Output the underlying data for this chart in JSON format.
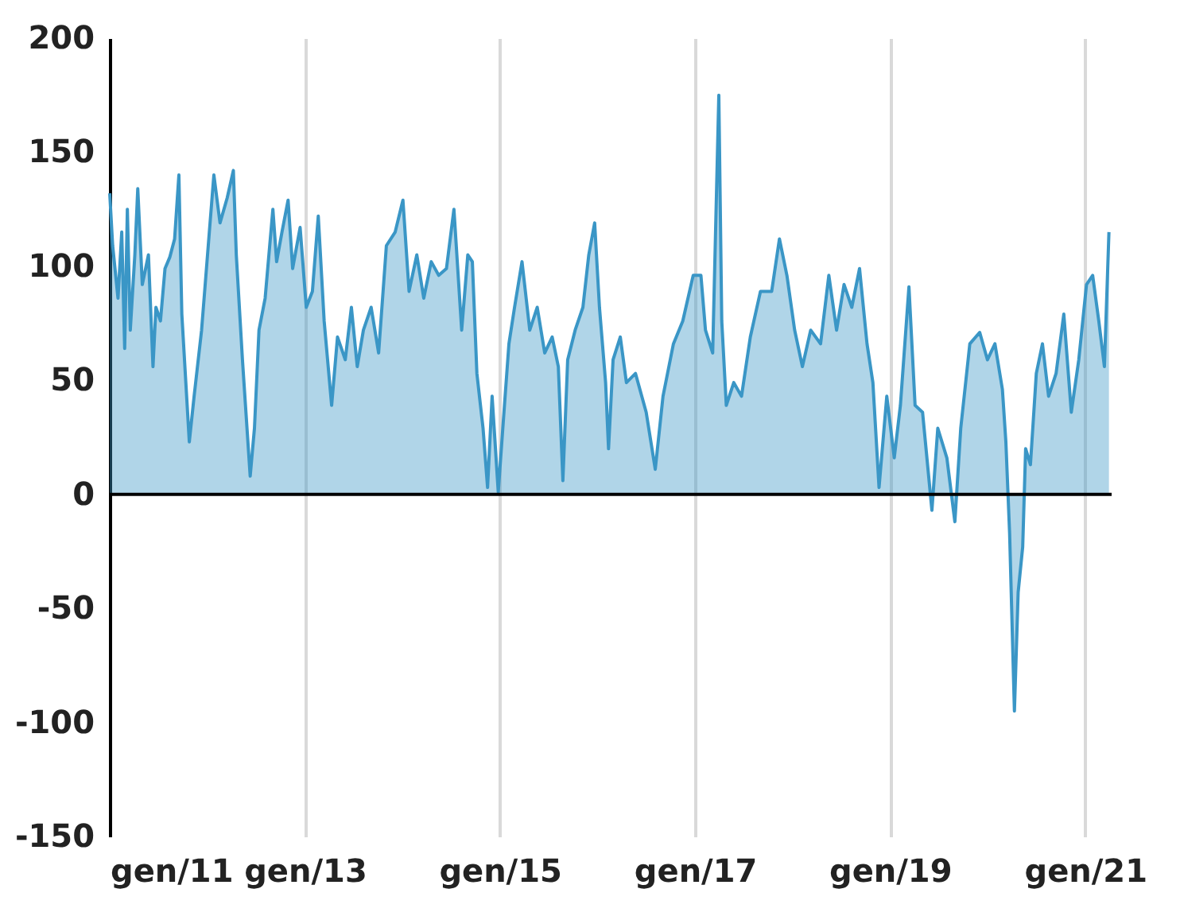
{
  "chart_data": {
    "type": "area",
    "x": [
      "2011-01-01",
      "2011-01-12",
      "2011-02-01",
      "2011-02-15",
      "2011-02-26",
      "2011-03-08",
      "2011-03-19",
      "2011-04-05",
      "2011-04-16",
      "2011-05-03",
      "2011-05-26",
      "2011-06-12",
      "2011-06-23",
      "2011-07-10",
      "2011-07-27",
      "2011-08-14",
      "2011-09-01",
      "2011-09-17",
      "2011-09-28",
      "2011-10-26",
      "2011-11-13",
      "2011-12-11",
      "2012-01-09",
      "2012-01-26",
      "2012-02-18",
      "2012-03-16",
      "2012-04-08",
      "2012-04-19",
      "2012-05-12",
      "2012-06-10",
      "2012-06-26",
      "2012-07-13",
      "2012-08-05",
      "2012-09-03",
      "2012-09-17",
      "2012-10-07",
      "2012-10-30",
      "2012-11-16",
      "2012-12-14",
      "2013-01-06",
      "2013-01-29",
      "2013-02-20",
      "2013-03-14",
      "2013-04-11",
      "2013-05-03",
      "2013-06-01",
      "2013-06-24",
      "2013-07-16",
      "2013-08-08",
      "2013-09-06",
      "2013-10-04",
      "2013-11-02",
      "2013-12-05",
      "2014-01-03",
      "2014-01-26",
      "2014-02-24",
      "2014-03-22",
      "2014-04-19",
      "2014-05-17",
      "2014-06-15",
      "2014-07-13",
      "2014-08-11",
      "2014-09-03",
      "2014-09-20",
      "2014-10-07",
      "2014-10-30",
      "2014-11-16",
      "2014-12-03",
      "2014-12-26",
      "2015-01-12",
      "2015-02-04",
      "2015-02-25",
      "2015-03-25",
      "2015-04-23",
      "2015-05-21",
      "2015-06-18",
      "2015-07-16",
      "2015-08-08",
      "2015-08-25",
      "2015-09-12",
      "2015-10-10",
      "2015-11-08",
      "2015-11-30",
      "2015-12-22",
      "2016-01-09",
      "2016-02-01",
      "2016-02-12",
      "2016-02-29",
      "2016-03-27",
      "2016-04-19",
      "2016-05-23",
      "2016-07-02",
      "2016-08-05",
      "2016-09-03",
      "2016-10-12",
      "2016-11-16",
      "2016-12-25",
      "2017-01-23",
      "2017-02-09",
      "2017-03-08",
      "2017-03-31",
      "2017-04-11",
      "2017-04-28",
      "2017-05-26",
      "2017-06-24",
      "2017-07-27",
      "2017-09-03",
      "2017-10-15",
      "2017-11-13",
      "2017-12-11",
      "2018-01-09",
      "2018-02-07",
      "2018-03-10",
      "2018-04-16",
      "2018-05-17",
      "2018-06-15",
      "2018-07-13",
      "2018-08-11",
      "2018-09-09",
      "2018-10-07",
      "2018-10-29",
      "2018-11-21",
      "2018-12-20",
      "2019-01-17",
      "2019-02-09",
      "2019-03-13",
      "2019-04-05",
      "2019-05-03",
      "2019-06-07",
      "2019-06-29",
      "2019-08-02",
      "2019-09-01",
      "2019-09-23",
      "2019-10-27",
      "2019-12-03",
      "2020-01-01",
      "2020-01-29",
      "2020-02-26",
      "2020-03-10",
      "2020-03-24",
      "2020-04-11",
      "2020-04-25",
      "2020-05-12",
      "2020-05-23",
      "2020-06-10",
      "2020-07-02",
      "2020-07-25",
      "2020-08-17",
      "2020-09-14",
      "2020-10-13",
      "2020-11-10",
      "2020-12-08",
      "2021-01-06",
      "2021-01-29",
      "2021-02-21",
      "2021-03-14",
      "2021-03-31"
    ],
    "series": [
      {
        "color": "#3a96c6",
        "values": [
          132,
          109,
          86,
          115,
          64,
          125,
          72,
          105,
          134,
          92,
          105,
          56,
          82,
          76,
          99,
          104,
          112,
          140,
          79,
          23,
          43,
          72,
          115,
          140,
          119,
          130,
          142,
          105,
          59,
          8,
          29,
          72,
          86,
          125,
          102,
          115,
          129,
          99,
          117,
          82,
          89,
          122,
          76,
          39,
          69,
          59,
          82,
          56,
          72,
          82,
          62,
          109,
          115,
          129,
          89,
          105,
          86,
          102,
          96,
          99,
          125,
          72,
          105,
          102,
          53,
          29,
          3,
          43,
          1,
          29,
          66,
          82,
          102,
          72,
          82,
          62,
          69,
          56,
          6,
          59,
          72,
          82,
          105,
          119,
          82,
          49,
          20,
          59,
          69,
          49,
          53,
          36,
          11,
          43,
          66,
          76,
          96,
          96,
          72,
          62,
          175,
          76,
          39,
          49,
          43,
          69,
          89,
          89,
          112,
          96,
          72,
          56,
          72,
          66,
          96,
          72,
          92,
          82,
          99,
          66,
          49,
          3,
          43,
          16,
          39,
          91,
          39,
          36,
          -7,
          29,
          16,
          -12,
          29,
          66,
          71,
          59,
          66,
          46,
          23,
          -17,
          -95,
          -43,
          -23,
          20,
          13,
          53,
          66,
          43,
          53,
          79,
          36,
          59,
          92,
          96,
          76,
          56,
          115
        ]
      }
    ],
    "xlim": [
      "2011-01-01",
      "2021-04-10"
    ],
    "xticks": [
      {
        "value": "2011-01-01",
        "label": "gen/11"
      },
      {
        "value": "2013-01-01",
        "label": "gen/13"
      },
      {
        "value": "2015-01-01",
        "label": "gen/15"
      },
      {
        "value": "2017-01-01",
        "label": "gen/17"
      },
      {
        "value": "2019-01-01",
        "label": "gen/19"
      },
      {
        "value": "2021-01-01",
        "label": "gen/21"
      }
    ],
    "ylim": [
      -150,
      200
    ],
    "yticks": [
      -150,
      -100,
      -50,
      0,
      50,
      100,
      150,
      200
    ],
    "ref_lines": [
      {
        "axis": "y",
        "value": 0,
        "color": "#000000"
      }
    ],
    "grid": "x"
  }
}
